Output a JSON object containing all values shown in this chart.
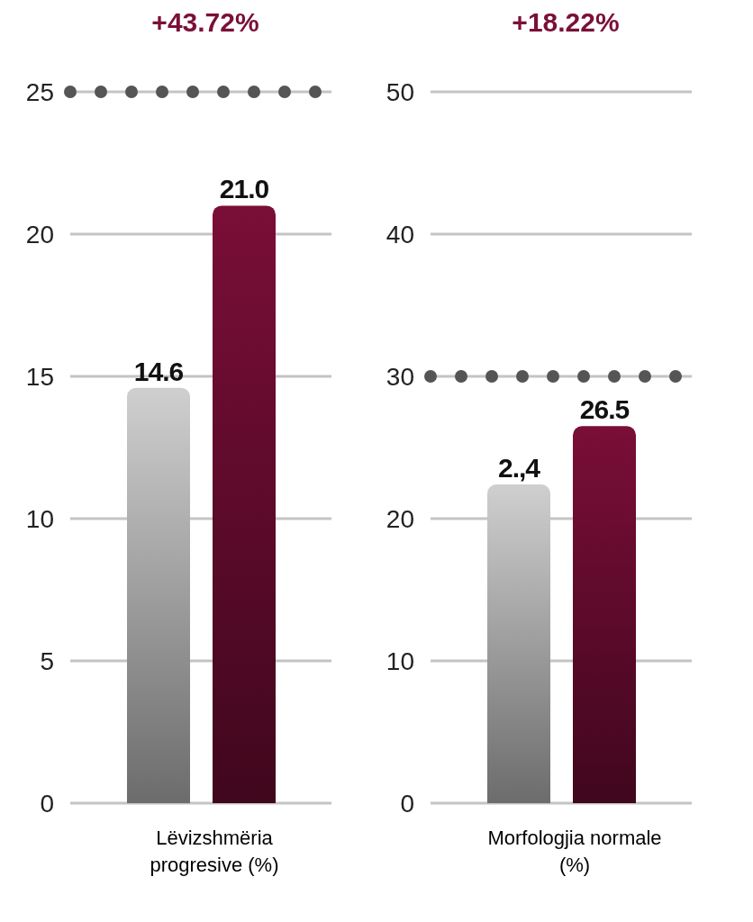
{
  "chart_data": [
    {
      "type": "bar",
      "title": "+43.72%",
      "xlabel": "Lëvizshmëria progresive (%)",
      "categories": [
        null,
        null
      ],
      "values": [
        14.6,
        21.0
      ],
      "colors": [
        "#b4b4b4",
        "#6a0c30"
      ],
      "value_labels": [
        "14.6",
        "21.0"
      ],
      "ylim": [
        0,
        25
      ],
      "yticks": [
        0,
        5,
        10,
        15,
        20,
        25
      ],
      "grid": "y",
      "ref_lines": [
        {
          "axis": "y",
          "value": 25,
          "color": "#555555",
          "line_style": "dotted"
        }
      ]
    },
    {
      "type": "bar",
      "title": "+18.22%",
      "xlabel": "Morfologjia normale (%)",
      "categories": [
        null,
        null
      ],
      "values": [
        22.4,
        26.5
      ],
      "colors": [
        "#b4b4b4",
        "#6a0c30"
      ],
      "value_labels": [
        "2.,4",
        "26.5"
      ],
      "ylim": [
        0,
        50
      ],
      "yticks": [
        0,
        10,
        20,
        30,
        40,
        50
      ],
      "grid": "y",
      "ref_lines": [
        {
          "axis": "y",
          "value": 30,
          "color": "#555555",
          "line_style": "dotted"
        }
      ]
    }
  ]
}
